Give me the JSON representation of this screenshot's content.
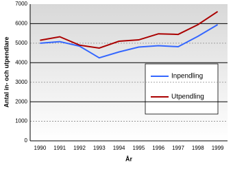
{
  "chart_data": {
    "type": "line",
    "x_label": "År",
    "y_label": "Antal in- och utpendlare",
    "categories": [
      "1990",
      "1991",
      "1992",
      "1993",
      "1994",
      "1995",
      "1996",
      "1997",
      "1998",
      "1999"
    ],
    "series": [
      {
        "name": "Inpendling",
        "color": "#3366ff",
        "values": [
          5000,
          5080,
          4850,
          4250,
          4550,
          4800,
          4870,
          4820,
          5350,
          5950
        ]
      },
      {
        "name": "Utpendling",
        "color": "#aa0000",
        "values": [
          5150,
          5330,
          4900,
          4750,
          5100,
          5170,
          5480,
          5450,
          5950,
          6620
        ]
      }
    ],
    "ylim": [
      0,
      7000
    ],
    "yticks": [
      0,
      1000,
      2000,
      3000,
      4000,
      5000,
      6000,
      7000
    ],
    "grid": true
  }
}
